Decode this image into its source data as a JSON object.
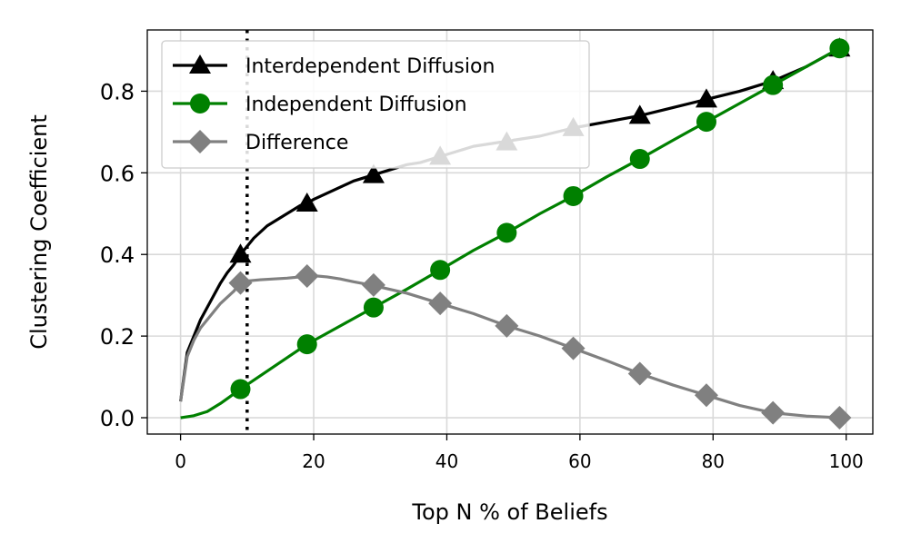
{
  "chart_data": {
    "type": "line",
    "title": "",
    "xlabel": "Top N % of Beliefs",
    "ylabel": "Clustering Coefficient",
    "xlim": [
      -5,
      104
    ],
    "ylim": [
      -0.04,
      0.95
    ],
    "xticks": [
      0,
      20,
      40,
      60,
      80,
      100
    ],
    "yticks": [
      0.0,
      0.2,
      0.4,
      0.6,
      0.8
    ],
    "xtick_labels": [
      "0",
      "20",
      "40",
      "60",
      "80",
      "100"
    ],
    "ytick_labels": [
      "0.0",
      "0.2",
      "0.4",
      "0.6",
      "0.8"
    ],
    "grid": true,
    "legend_position": "upper-left",
    "vline": {
      "x": 10,
      "style": "dotted"
    },
    "series": [
      {
        "name": "Interdependent Diffusion",
        "color": "#000000",
        "marker": "triangle",
        "x": [
          0,
          1,
          2,
          3,
          4,
          5,
          6,
          7,
          8,
          9,
          10,
          11,
          12,
          13,
          14,
          15,
          16,
          17,
          18,
          19,
          20,
          22,
          24,
          26,
          28,
          29,
          30,
          32,
          34,
          36,
          38,
          39,
          40,
          42,
          44,
          46,
          48,
          49,
          50,
          54,
          59,
          64,
          69,
          74,
          79,
          84,
          89,
          94,
          99
        ],
        "y": [
          0.04,
          0.16,
          0.2,
          0.24,
          0.27,
          0.3,
          0.33,
          0.355,
          0.375,
          0.4,
          0.42,
          0.44,
          0.455,
          0.47,
          0.48,
          0.49,
          0.5,
          0.51,
          0.52,
          0.525,
          0.535,
          0.55,
          0.565,
          0.58,
          0.59,
          0.595,
          0.6,
          0.61,
          0.62,
          0.625,
          0.635,
          0.64,
          0.645,
          0.655,
          0.665,
          0.67,
          0.675,
          0.675,
          0.68,
          0.69,
          0.71,
          0.725,
          0.74,
          0.76,
          0.78,
          0.8,
          0.825,
          0.86,
          0.905
        ],
        "marker_x": [
          9,
          19,
          29,
          39,
          49,
          59,
          69,
          79,
          89,
          99
        ],
        "marker_y": [
          0.4,
          0.525,
          0.595,
          0.64,
          0.675,
          0.71,
          0.74,
          0.78,
          0.825,
          0.905
        ]
      },
      {
        "name": "Independent Diffusion",
        "color": "#008000",
        "marker": "circle",
        "x": [
          0,
          2,
          4,
          6,
          9,
          14,
          19,
          24,
          29,
          34,
          39,
          44,
          49,
          54,
          59,
          64,
          69,
          74,
          79,
          84,
          89,
          94,
          99
        ],
        "y": [
          0.0,
          0.005,
          0.015,
          0.035,
          0.07,
          0.125,
          0.18,
          0.225,
          0.27,
          0.315,
          0.362,
          0.41,
          0.453,
          0.5,
          0.543,
          0.59,
          0.634,
          0.68,
          0.725,
          0.77,
          0.815,
          0.86,
          0.905
        ],
        "marker_x": [
          9,
          19,
          29,
          39,
          49,
          59,
          69,
          79,
          89,
          99
        ],
        "marker_y": [
          0.07,
          0.18,
          0.27,
          0.362,
          0.453,
          0.543,
          0.634,
          0.725,
          0.815,
          0.905
        ]
      },
      {
        "name": "Difference",
        "color": "#808080",
        "marker": "diamond",
        "x": [
          0,
          1,
          2,
          3,
          4,
          5,
          6,
          7,
          8,
          9,
          10,
          12,
          14,
          16,
          18,
          19,
          20,
          22,
          24,
          26,
          28,
          29,
          30,
          34,
          39,
          44,
          49,
          54,
          59,
          64,
          69,
          74,
          79,
          84,
          89,
          94,
          99
        ],
        "y": [
          0.04,
          0.15,
          0.19,
          0.22,
          0.24,
          0.26,
          0.28,
          0.295,
          0.31,
          0.33,
          0.335,
          0.338,
          0.34,
          0.342,
          0.345,
          0.347,
          0.348,
          0.345,
          0.34,
          0.333,
          0.327,
          0.325,
          0.32,
          0.305,
          0.28,
          0.255,
          0.225,
          0.2,
          0.17,
          0.14,
          0.108,
          0.08,
          0.055,
          0.03,
          0.012,
          0.004,
          0.0
        ],
        "marker_x": [
          9,
          19,
          29,
          39,
          49,
          59,
          69,
          79,
          89,
          99
        ],
        "marker_y": [
          0.33,
          0.347,
          0.325,
          0.28,
          0.225,
          0.17,
          0.108,
          0.055,
          0.012,
          0.0
        ]
      }
    ]
  }
}
